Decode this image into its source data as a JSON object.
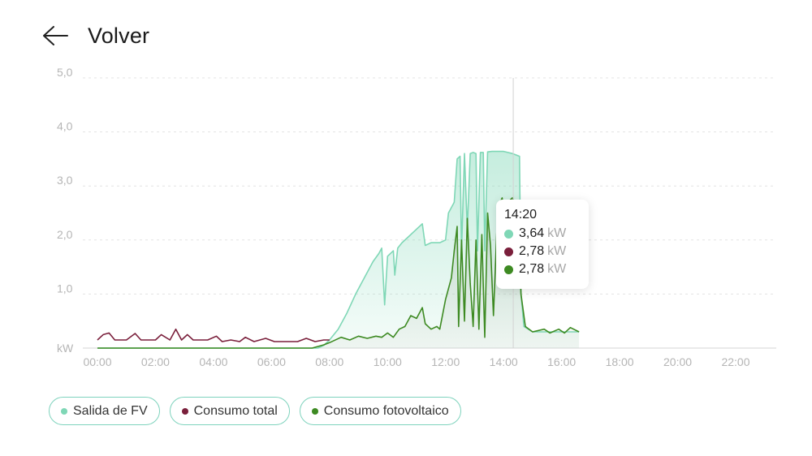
{
  "header": {
    "back_label": "Volver",
    "back_icon": "arrow-left-icon"
  },
  "colors": {
    "pv_output": "#7fd7b6",
    "total_consumption": "#7a1f3b",
    "pv_consumption": "#3d8a22",
    "grid": "#e3e3e3",
    "tick": "#b5b5b5"
  },
  "chart_data": {
    "type": "area",
    "unit": "kW",
    "ylim": [
      0,
      5
    ],
    "yticks": [
      "1,0",
      "2,0",
      "3,0",
      "4,0",
      "5,0"
    ],
    "xlim": [
      0,
      24
    ],
    "xticks": [
      "00:00",
      "02:00",
      "04:00",
      "06:00",
      "08:00",
      "10:00",
      "12:00",
      "14:00",
      "16:00",
      "18:00",
      "20:00",
      "22:00"
    ],
    "grid": true,
    "legend_position": "bottom-left",
    "series": [
      {
        "name": "Salida de FV",
        "color": "#7fd7b6",
        "points": [
          [
            0,
            0
          ],
          [
            7.6,
            0
          ],
          [
            7.8,
            0.05
          ],
          [
            8.0,
            0.15
          ],
          [
            8.3,
            0.35
          ],
          [
            8.6,
            0.65
          ],
          [
            8.9,
            1.0
          ],
          [
            9.2,
            1.3
          ],
          [
            9.5,
            1.6
          ],
          [
            9.7,
            1.75
          ],
          [
            9.8,
            1.85
          ],
          [
            9.9,
            0.8
          ],
          [
            10.0,
            1.7
          ],
          [
            10.2,
            1.8
          ],
          [
            10.25,
            1.35
          ],
          [
            10.35,
            1.85
          ],
          [
            10.5,
            1.95
          ],
          [
            10.7,
            2.05
          ],
          [
            10.9,
            2.15
          ],
          [
            11.1,
            2.25
          ],
          [
            11.2,
            2.3
          ],
          [
            11.3,
            1.9
          ],
          [
            11.5,
            1.95
          ],
          [
            11.8,
            1.95
          ],
          [
            12.0,
            2.0
          ],
          [
            12.1,
            2.5
          ],
          [
            12.3,
            2.7
          ],
          [
            12.4,
            3.5
          ],
          [
            12.5,
            3.55
          ],
          [
            12.55,
            1.8
          ],
          [
            12.65,
            3.6
          ],
          [
            12.75,
            2.2
          ],
          [
            12.85,
            3.6
          ],
          [
            12.95,
            3.62
          ],
          [
            13.05,
            3.6
          ],
          [
            13.1,
            1.8
          ],
          [
            13.2,
            3.62
          ],
          [
            13.3,
            3.62
          ],
          [
            13.35,
            1.8
          ],
          [
            13.45,
            3.63
          ],
          [
            13.6,
            3.64
          ],
          [
            13.8,
            3.64
          ],
          [
            14.0,
            3.64
          ],
          [
            14.3,
            3.6
          ],
          [
            14.55,
            3.55
          ],
          [
            14.6,
            1.0
          ],
          [
            14.7,
            0.4
          ],
          [
            15.0,
            0.3
          ],
          [
            15.5,
            0.3
          ],
          [
            16.0,
            0.3
          ],
          [
            16.5,
            0.3
          ],
          [
            16.6,
            0.3
          ]
        ]
      },
      {
        "name": "Consumo total",
        "color": "#7a1f3b",
        "points": [
          [
            0,
            0.15
          ],
          [
            0.2,
            0.25
          ],
          [
            0.4,
            0.28
          ],
          [
            0.6,
            0.15
          ],
          [
            1.0,
            0.15
          ],
          [
            1.3,
            0.27
          ],
          [
            1.5,
            0.15
          ],
          [
            2.0,
            0.15
          ],
          [
            2.2,
            0.25
          ],
          [
            2.5,
            0.15
          ],
          [
            2.7,
            0.35
          ],
          [
            2.9,
            0.15
          ],
          [
            3.1,
            0.25
          ],
          [
            3.3,
            0.15
          ],
          [
            3.8,
            0.15
          ],
          [
            4.1,
            0.22
          ],
          [
            4.3,
            0.12
          ],
          [
            4.6,
            0.15
          ],
          [
            4.9,
            0.12
          ],
          [
            5.1,
            0.2
          ],
          [
            5.4,
            0.12
          ],
          [
            5.8,
            0.18
          ],
          [
            6.1,
            0.12
          ],
          [
            6.5,
            0.12
          ],
          [
            6.9,
            0.12
          ],
          [
            7.2,
            0.18
          ],
          [
            7.5,
            0.12
          ],
          [
            7.8,
            0.15
          ],
          [
            8.0,
            0.15
          ]
        ]
      },
      {
        "name": "Consumo fotovoltaico",
        "color": "#3d8a22",
        "points": [
          [
            0,
            0
          ],
          [
            7.4,
            0
          ],
          [
            7.8,
            0.06
          ],
          [
            8.0,
            0.1
          ],
          [
            8.4,
            0.2
          ],
          [
            8.7,
            0.15
          ],
          [
            9.0,
            0.22
          ],
          [
            9.3,
            0.18
          ],
          [
            9.6,
            0.22
          ],
          [
            9.8,
            0.2
          ],
          [
            10.0,
            0.28
          ],
          [
            10.2,
            0.2
          ],
          [
            10.4,
            0.35
          ],
          [
            10.6,
            0.4
          ],
          [
            10.8,
            0.6
          ],
          [
            11.0,
            0.55
          ],
          [
            11.2,
            0.75
          ],
          [
            11.3,
            0.45
          ],
          [
            11.5,
            0.35
          ],
          [
            11.7,
            0.4
          ],
          [
            11.8,
            0.35
          ],
          [
            12.0,
            0.9
          ],
          [
            12.2,
            1.3
          ],
          [
            12.3,
            1.8
          ],
          [
            12.4,
            2.25
          ],
          [
            12.45,
            0.4
          ],
          [
            12.55,
            2.0
          ],
          [
            12.65,
            0.5
          ],
          [
            12.75,
            2.4
          ],
          [
            12.85,
            1.2
          ],
          [
            12.95,
            0.4
          ],
          [
            13.05,
            2.0
          ],
          [
            13.15,
            0.35
          ],
          [
            13.25,
            2.1
          ],
          [
            13.35,
            0.2
          ],
          [
            13.45,
            2.5
          ],
          [
            13.55,
            1.9
          ],
          [
            13.65,
            0.6
          ],
          [
            13.8,
            2.6
          ],
          [
            13.95,
            2.78
          ],
          [
            14.05,
            2.4
          ],
          [
            14.15,
            2.7
          ],
          [
            14.3,
            2.78
          ],
          [
            14.5,
            2.6
          ],
          [
            14.6,
            1.0
          ],
          [
            14.75,
            0.4
          ],
          [
            15.0,
            0.3
          ],
          [
            15.4,
            0.35
          ],
          [
            15.6,
            0.28
          ],
          [
            15.9,
            0.35
          ],
          [
            16.1,
            0.28
          ],
          [
            16.3,
            0.38
          ],
          [
            16.6,
            0.3
          ]
        ]
      }
    ],
    "cursor": {
      "x": 14.333
    }
  },
  "tooltip": {
    "time": "14:20",
    "rows": [
      {
        "value": "3,64",
        "unit": "kW",
        "color": "#7fd7b6"
      },
      {
        "value": "2,78",
        "unit": "kW",
        "color": "#7a1f3b"
      },
      {
        "value": "2,78",
        "unit": "kW",
        "color": "#3d8a22"
      }
    ]
  },
  "legend": [
    {
      "label": "Salida de FV",
      "color": "#7fd7b6"
    },
    {
      "label": "Consumo total",
      "color": "#7a1f3b"
    },
    {
      "label": "Consumo fotovoltaico",
      "color": "#3d8a22"
    }
  ]
}
